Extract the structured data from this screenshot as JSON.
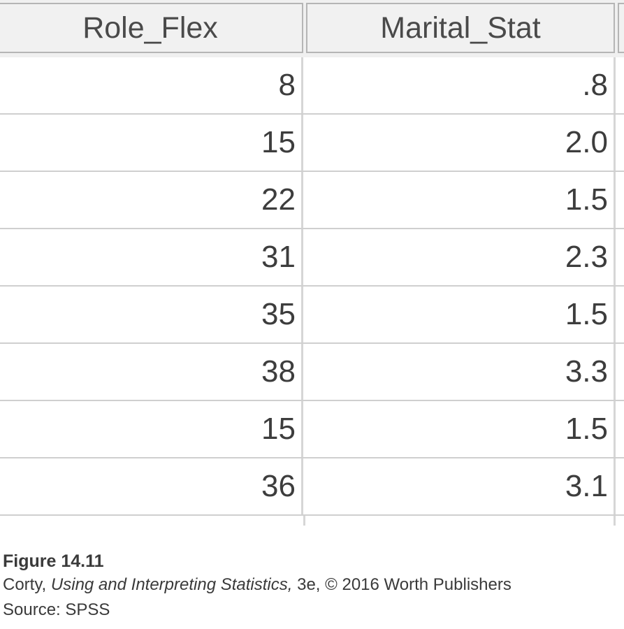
{
  "table": {
    "columns": [
      "Role_Flex",
      "Marital_Stat"
    ],
    "rows": [
      [
        "8",
        ".8"
      ],
      [
        "15",
        "2.0"
      ],
      [
        "22",
        "1.5"
      ],
      [
        "31",
        "2.3"
      ],
      [
        "35",
        "1.5"
      ],
      [
        "38",
        "3.3"
      ],
      [
        "15",
        "1.5"
      ],
      [
        "36",
        "3.1"
      ]
    ]
  },
  "caption": {
    "title": "Figure 14.11",
    "author": "Corty,",
    "book_title": "Using and Interpreting Statistics,",
    "edition_rest": "3e, © 2016 Worth Publishers",
    "source": "Source: SPSS"
  },
  "colors": {
    "header_bg": "#f1f1f1",
    "grid_line": "#cfcfcf",
    "text": "#3d3d3d"
  }
}
